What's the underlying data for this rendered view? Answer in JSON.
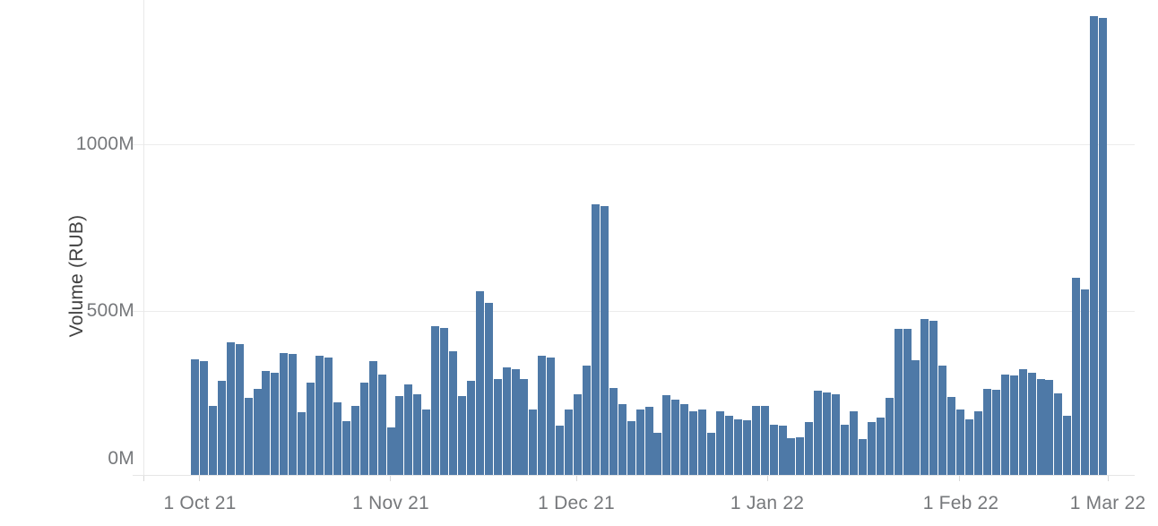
{
  "y_axis": {
    "title": "Volume (RUB)",
    "ticks": [
      "0M",
      "500M",
      "1000M"
    ]
  },
  "x_axis": {
    "ticks": [
      "1 Oct 21",
      "1 Nov 21",
      "1 Dec 21",
      "1 Jan 22",
      "1 Feb 22",
      "1 Mar 22"
    ]
  },
  "colors": {
    "bar": "#4e79a7",
    "grid": "#ececec",
    "tick_label": "#76787b",
    "axis_title": "#414141"
  },
  "chart_data": {
    "type": "bar",
    "title": "",
    "xlabel": "",
    "ylabel": "Volume (RUB)",
    "x_tick_labels": [
      "1 Oct 21",
      "1 Nov 21",
      "1 Dec 21",
      "1 Jan 22",
      "1 Feb 22",
      "1 Mar 22"
    ],
    "y_tick_labels": [
      "0M",
      "500M",
      "1000M"
    ],
    "ylim": [
      0,
      1420
    ],
    "unit": "millions RUB",
    "grid": "horizontal",
    "legend": "none",
    "bar_color": "#4e79a7",
    "note": "Daily trading volume bars from 1 Oct 21 to 1 Mar 22; values in millions of RUB estimated from axis scale",
    "values": [
      355,
      350,
      215,
      290,
      405,
      400,
      240,
      265,
      320,
      315,
      375,
      370,
      195,
      285,
      365,
      360,
      225,
      170,
      215,
      285,
      350,
      310,
      150,
      245,
      280,
      250,
      205,
      455,
      450,
      380,
      245,
      290,
      560,
      525,
      295,
      330,
      325,
      295,
      205,
      365,
      360,
      155,
      205,
      250,
      335,
      820,
      815,
      270,
      220,
      170,
      205,
      212,
      135,
      248,
      234,
      220,
      198,
      203,
      135,
      200,
      185,
      176,
      171,
      216,
      214,
      158,
      155,
      117,
      122,
      167,
      261,
      255,
      250,
      158,
      200,
      115,
      167,
      180,
      239,
      446,
      445,
      351,
      475,
      470,
      335,
      243,
      203,
      175,
      198,
      266,
      264,
      308,
      306,
      326,
      315,
      297,
      293,
      254,
      185,
      600,
      565,
      1385,
      1380
    ]
  }
}
